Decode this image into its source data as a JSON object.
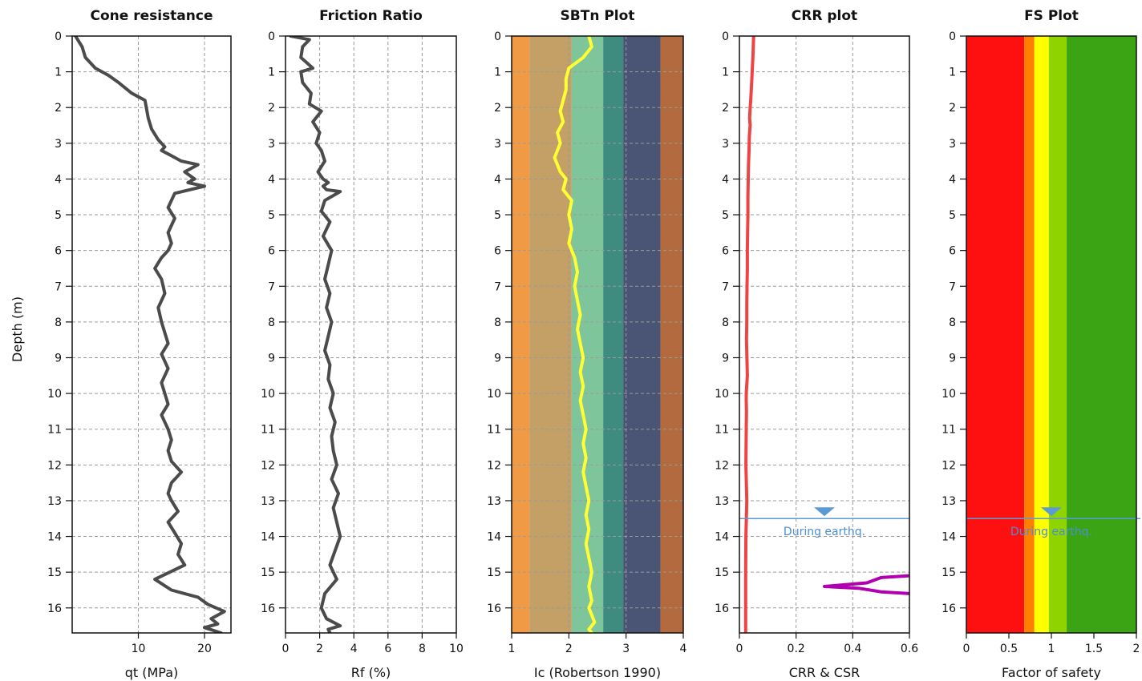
{
  "depth_label": "Depth (m)",
  "colors": {
    "profile": "#4b4b4b",
    "ic_line": "#ffff33",
    "crr_line": "#ee4444",
    "csr_line": "#b000b0",
    "water_table": "#5b9bd5"
  },
  "water_table": {
    "depth": 13.5,
    "label": "During earthq."
  },
  "chart_data": [
    {
      "type": "line",
      "title": "Cone resistance",
      "xlabel": "qt (MPa)",
      "ylabel": "Depth (m)",
      "xlim": [
        0,
        24
      ],
      "ylim": [
        16.7,
        0
      ],
      "xticks": [
        10,
        20
      ],
      "yticks": [
        0,
        1,
        2,
        3,
        4,
        5,
        6,
        7,
        8,
        9,
        10,
        11,
        12,
        13,
        14,
        15,
        16
      ],
      "grid": true,
      "series": [
        {
          "x": [
            0.5,
            1.5,
            2,
            3.5,
            5.5,
            7,
            9,
            11,
            11.5,
            12,
            13,
            14,
            13.5,
            15,
            16.5,
            19,
            17,
            18.5,
            17.5,
            20,
            15.5,
            14.5,
            15.5,
            14.5,
            15,
            14.5,
            13.5,
            12.5,
            13.5,
            14,
            13,
            13.5,
            14,
            14.5,
            13.5,
            14.5,
            13.5,
            14,
            14.5,
            13.5,
            14.5,
            15,
            14.5,
            15,
            16.5,
            15,
            14.5,
            15,
            16,
            14.5,
            15.5,
            16.5,
            16,
            17,
            12.5,
            15,
            19,
            20.5,
            23,
            21,
            22,
            20,
            22.5
          ],
          "y": [
            0,
            0.3,
            0.6,
            0.9,
            1.1,
            1.3,
            1.6,
            1.8,
            2.3,
            2.6,
            2.9,
            3.1,
            3.2,
            3.35,
            3.5,
            3.6,
            3.8,
            4.0,
            4.1,
            4.2,
            4.4,
            4.8,
            5.1,
            5.5,
            5.8,
            6.0,
            6.2,
            6.5,
            6.8,
            7.2,
            7.6,
            8.0,
            8.3,
            8.6,
            8.9,
            9.3,
            9.7,
            10.0,
            10.3,
            10.6,
            11.0,
            11.3,
            11.6,
            11.9,
            12.2,
            12.5,
            12.8,
            13.0,
            13.3,
            13.6,
            13.9,
            14.2,
            14.5,
            14.8,
            15.2,
            15.5,
            15.7,
            15.9,
            16.1,
            16.3,
            16.45,
            16.55,
            16.7
          ]
        }
      ]
    },
    {
      "type": "line",
      "title": "Friction Ratio",
      "xlabel": "Rf (%)",
      "ylabel": "",
      "xlim": [
        0,
        10
      ],
      "ylim": [
        16.7,
        0
      ],
      "xticks": [
        0,
        2,
        4,
        6,
        8,
        10
      ],
      "yticks": [
        0,
        1,
        2,
        3,
        4,
        5,
        6,
        7,
        8,
        9,
        10,
        11,
        12,
        13,
        14,
        15,
        16
      ],
      "grid": true,
      "series": [
        {
          "x": [
            0.3,
            1.4,
            1.0,
            0.9,
            1.6,
            0.9,
            1.0,
            1.5,
            1.4,
            2.1,
            1.6,
            2.0,
            1.8,
            2.1,
            2.3,
            1.9,
            2.2,
            2.5,
            2.2,
            2.4,
            3.2,
            2.3,
            2.1,
            2.6,
            2.2,
            2.7,
            2.5,
            2.3,
            2.6,
            2.4,
            2.7,
            2.5,
            2.3,
            2.6,
            2.5,
            2.8,
            2.6,
            2.9,
            2.7,
            2.8,
            3.0,
            2.7,
            3.1,
            2.8,
            3.0,
            3.2,
            2.9,
            2.6,
            3.0,
            2.3,
            2.1,
            2.4,
            3.2,
            2.5,
            2.6
          ],
          "y": [
            0,
            0.1,
            0.3,
            0.6,
            0.9,
            1.0,
            1.3,
            1.6,
            1.9,
            2.1,
            2.4,
            2.7,
            3.0,
            3.2,
            3.5,
            3.8,
            4.0,
            4.1,
            4.2,
            4.3,
            4.35,
            4.6,
            4.9,
            5.2,
            5.6,
            6.0,
            6.4,
            6.8,
            7.2,
            7.6,
            8.0,
            8.4,
            8.8,
            9.2,
            9.6,
            10.0,
            10.4,
            10.8,
            11.2,
            11.6,
            12.0,
            12.4,
            12.8,
            13.2,
            13.6,
            14.0,
            14.4,
            14.8,
            15.2,
            15.6,
            16.0,
            16.3,
            16.5,
            16.6,
            16.7
          ]
        }
      ]
    },
    {
      "type": "line",
      "title": "SBTn Plot",
      "xlabel": "Ic (Robertson 1990)",
      "ylabel": "",
      "xlim": [
        1,
        4
      ],
      "ylim": [
        16.7,
        0
      ],
      "xticks": [
        1,
        2,
        3,
        4
      ],
      "yticks": [
        0,
        1,
        2,
        3,
        4,
        5,
        6,
        7,
        8,
        9,
        10,
        11,
        12,
        13,
        14,
        15,
        16
      ],
      "grid": true,
      "zones": [
        {
          "from": 1.0,
          "to": 1.31,
          "color": "#f09a45"
        },
        {
          "from": 1.31,
          "to": 2.05,
          "color": "#c4a066"
        },
        {
          "from": 2.05,
          "to": 2.6,
          "color": "#7ec59c"
        },
        {
          "from": 2.6,
          "to": 2.95,
          "color": "#3e8b80"
        },
        {
          "from": 2.95,
          "to": 3.6,
          "color": "#4a5575"
        },
        {
          "from": 3.6,
          "to": 4.0,
          "color": "#b26a3e"
        }
      ],
      "series": [
        {
          "x": [
            2.35,
            2.4,
            2.25,
            2.0,
            1.95,
            1.95,
            1.9,
            1.85,
            1.9,
            1.8,
            1.85,
            1.75,
            1.85,
            1.95,
            1.9,
            2.05,
            2.0,
            2.05,
            2.0,
            2.1,
            2.15,
            2.1,
            2.15,
            2.2,
            2.15,
            2.2,
            2.25,
            2.2,
            2.25,
            2.2,
            2.25,
            2.3,
            2.25,
            2.3,
            2.25,
            2.3,
            2.35,
            2.3,
            2.35,
            2.3,
            2.35,
            2.4,
            2.35,
            2.4,
            2.35,
            2.4,
            2.45,
            2.4,
            2.35,
            2.4
          ],
          "y": [
            0,
            0.3,
            0.6,
            0.9,
            1.2,
            1.5,
            1.8,
            2.1,
            2.4,
            2.7,
            3.0,
            3.4,
            3.8,
            4.0,
            4.3,
            4.6,
            5.0,
            5.4,
            5.8,
            6.2,
            6.6,
            7.0,
            7.4,
            7.8,
            8.2,
            8.6,
            9.0,
            9.4,
            9.8,
            10.2,
            10.6,
            11.0,
            11.4,
            11.8,
            12.2,
            12.6,
            13.0,
            13.4,
            13.8,
            14.2,
            14.6,
            15.0,
            15.4,
            15.8,
            16.0,
            16.2,
            16.4,
            16.5,
            16.6,
            16.7
          ]
        }
      ]
    },
    {
      "type": "line",
      "title": "CRR plot",
      "xlabel": "CRR & CSR",
      "ylabel": "",
      "xlim": [
        0,
        0.6
      ],
      "ylim": [
        16.7,
        0
      ],
      "xticks": [
        0,
        0.2,
        0.4,
        0.6
      ],
      "yticks": [
        0,
        1,
        2,
        3,
        4,
        5,
        6,
        7,
        8,
        9,
        10,
        11,
        12,
        13,
        14,
        15,
        16
      ],
      "grid": true,
      "series": [
        {
          "x": [
            0.05,
            0.048,
            0.045,
            0.044,
            0.042,
            0.04,
            0.038,
            0.036,
            0.038,
            0.035,
            0.034,
            0.032,
            0.031,
            0.03,
            0.03,
            0.029,
            0.028,
            0.028,
            0.027,
            0.026,
            0.026,
            0.025,
            0.028,
            0.024,
            0.024,
            0.025,
            0.024,
            0.023,
            0.026,
            0.023,
            0.022,
            0.022
          ],
          "y": [
            0,
            0.5,
            1.0,
            1.2,
            1.5,
            1.8,
            2.0,
            2.3,
            2.5,
            2.8,
            3.2,
            3.6,
            4.0,
            4.5,
            5.0,
            5.5,
            6.0,
            6.5,
            7.0,
            7.5,
            8.0,
            8.5,
            9.5,
            10.0,
            10.2,
            10.5,
            11.0,
            12.0,
            13.0,
            14.0,
            15.0,
            16.7
          ]
        },
        {
          "x": [
            0.6,
            0.5,
            0.45,
            0.3,
            0.42,
            0.5,
            0.6
          ],
          "y": [
            15.1,
            15.15,
            15.3,
            15.4,
            15.45,
            15.55,
            15.6
          ]
        }
      ]
    },
    {
      "type": "line",
      "title": "FS Plot",
      "xlabel": "Factor of safety",
      "ylabel": "",
      "xlim": [
        0,
        2
      ],
      "ylim": [
        16.7,
        0
      ],
      "xticks": [
        0,
        0.5,
        1,
        1.5,
        2
      ],
      "yticks": [
        0,
        1,
        2,
        3,
        4,
        5,
        6,
        7,
        8,
        9,
        10,
        11,
        12,
        13,
        14,
        15,
        16
      ],
      "grid": false,
      "zones": [
        {
          "from": 0,
          "to": 0.68,
          "color": "#ff1010"
        },
        {
          "from": 0.68,
          "to": 0.8,
          "color": "#ff8000"
        },
        {
          "from": 0.8,
          "to": 0.97,
          "color": "#ffff00"
        },
        {
          "from": 0.97,
          "to": 1.18,
          "color": "#8fd400"
        },
        {
          "from": 1.18,
          "to": 2,
          "color": "#3aa415"
        }
      ],
      "series": []
    }
  ]
}
